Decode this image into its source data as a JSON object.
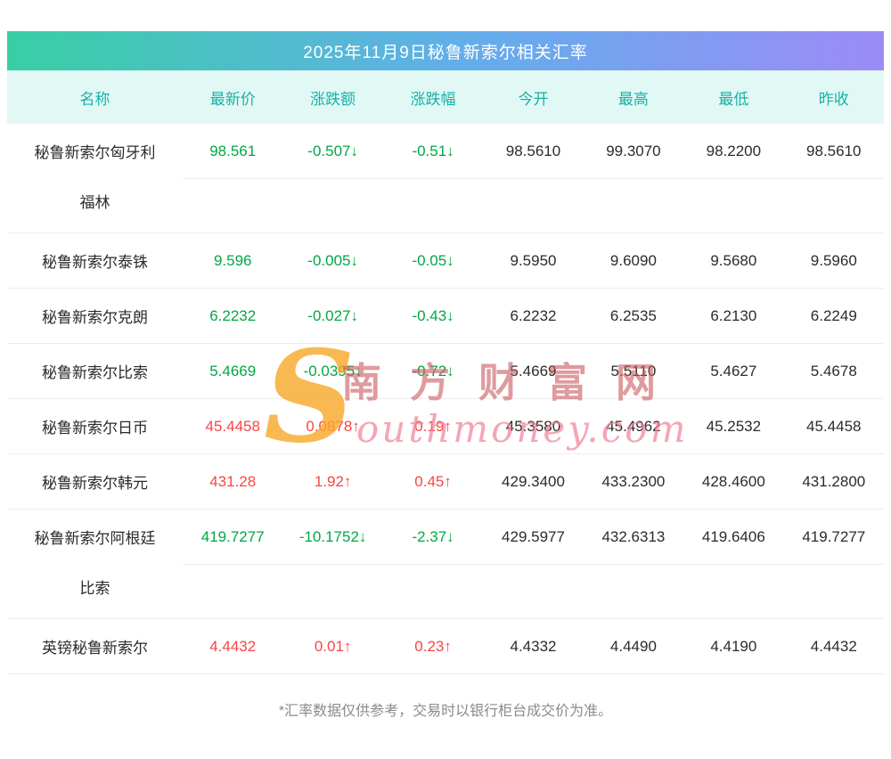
{
  "title": "2025年11月9日秘鲁新索尔相关汇率",
  "table": {
    "headers": [
      "名称",
      "最新价",
      "涨跌额",
      "涨跌幅",
      "今开",
      "最高",
      "最低",
      "昨收"
    ],
    "rows": [
      {
        "name_lines": [
          "秘鲁新索尔匈牙利",
          "福林"
        ],
        "latest": "98.561",
        "change": "-0.507↓",
        "pct": "-0.51↓",
        "open": "98.5610",
        "high": "99.3070",
        "low": "98.2200",
        "prev": "98.5610",
        "direction": "down"
      },
      {
        "name_lines": [
          "秘鲁新索尔泰铢"
        ],
        "latest": "9.596",
        "change": "-0.005↓",
        "pct": "-0.05↓",
        "open": "9.5950",
        "high": "9.6090",
        "low": "9.5680",
        "prev": "9.5960",
        "direction": "down"
      },
      {
        "name_lines": [
          "秘鲁新索尔克朗"
        ],
        "latest": "6.2232",
        "change": "-0.027↓",
        "pct": "-0.43↓",
        "open": "6.2232",
        "high": "6.2535",
        "low": "6.2130",
        "prev": "6.2249",
        "direction": "down"
      },
      {
        "name_lines": [
          "秘鲁新索尔比索"
        ],
        "latest": "5.4669",
        "change": "-0.0395↓",
        "pct": "-0.72↓",
        "open": "5.4669",
        "high": "5.5110",
        "low": "5.4627",
        "prev": "5.4678",
        "direction": "down"
      },
      {
        "name_lines": [
          "秘鲁新索尔日币"
        ],
        "latest": "45.4458",
        "change": "0.0878↑",
        "pct": "0.19↑",
        "open": "45.3580",
        "high": "45.4962",
        "low": "45.2532",
        "prev": "45.4458",
        "direction": "up"
      },
      {
        "name_lines": [
          "秘鲁新索尔韩元"
        ],
        "latest": "431.28",
        "change": "1.92↑",
        "pct": "0.45↑",
        "open": "429.3400",
        "high": "433.2300",
        "low": "428.4600",
        "prev": "431.2800",
        "direction": "up"
      },
      {
        "name_lines": [
          "秘鲁新索尔阿根廷",
          "比索"
        ],
        "latest": "419.7277",
        "change": "-10.1752↓",
        "pct": "-2.37↓",
        "open": "429.5977",
        "high": "432.6313",
        "low": "419.6406",
        "prev": "419.7277",
        "direction": "down"
      },
      {
        "name_lines": [
          "英镑秘鲁新索尔"
        ],
        "latest": "4.4432",
        "change": "0.01↑",
        "pct": "0.23↑",
        "open": "4.4332",
        "high": "4.4490",
        "low": "4.4190",
        "prev": "4.4432",
        "direction": "up"
      }
    ]
  },
  "watermark": {
    "logo": "S",
    "cn": "南方财富网",
    "en": "outhmoney.com"
  },
  "footer_note": "*汇率数据仅供参考，交易时以银行柜台成交价为准。",
  "colors": {
    "up": "#fc4343",
    "down": "#00a843",
    "header_text": "#14b2a9",
    "title_gradient_start": "#38cfa4",
    "title_gradient_end": "#9c8bf7"
  }
}
